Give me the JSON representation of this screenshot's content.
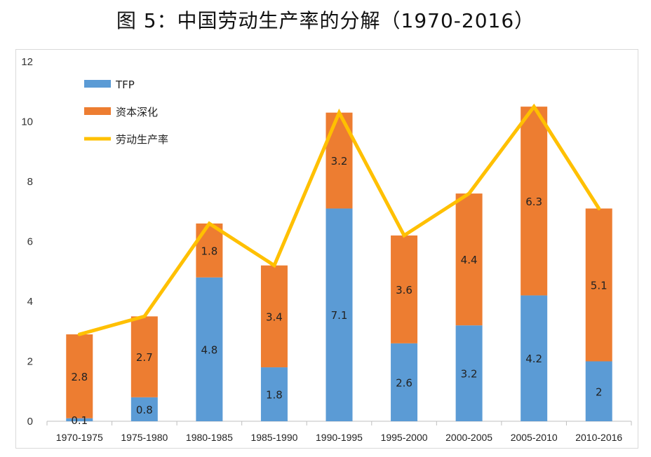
{
  "chart_title": "图 5：中国劳动生产率的分解（1970-2016）",
  "chart_data": {
    "type": "bar",
    "stacked": true,
    "title": "图 5：中国劳动生产率的分解（1970-2016）",
    "categories": [
      "1970-1975",
      "1975-1980",
      "1980-1985",
      "1985-1990",
      "1990-1995",
      "1995-2000",
      "2000-2005",
      "2005-2010",
      "2010-2016"
    ],
    "series": [
      {
        "name": "TFP",
        "type": "bar",
        "color": "#5b9bd5",
        "values": [
          0.1,
          0.8,
          4.8,
          1.8,
          7.1,
          2.6,
          3.2,
          4.2,
          2
        ]
      },
      {
        "name": "资本深化",
        "type": "bar",
        "color": "#ed7d31",
        "values": [
          2.8,
          2.7,
          1.8,
          3.4,
          3.2,
          3.6,
          4.4,
          6.3,
          5.1
        ]
      },
      {
        "name": "劳动生产率",
        "type": "line",
        "color": "#ffc000",
        "values": [
          2.9,
          3.5,
          6.6,
          5.2,
          10.3,
          6.2,
          7.6,
          10.5,
          7.1
        ]
      }
    ],
    "data_labels": {
      "TFP": [
        "0.1",
        "0.8",
        "4.8",
        "1.8",
        "7.1",
        "2.6",
        "3.2",
        "4.2",
        "2"
      ],
      "资本深化": [
        "2.8",
        "2.7",
        "1.8",
        "3.4",
        "3.2",
        "3.6",
        "4.4",
        "6.3",
        "5.1"
      ]
    },
    "ylim": [
      0,
      12
    ],
    "yticks": [
      "0",
      "2",
      "4",
      "6",
      "8",
      "10",
      "12"
    ],
    "xlabel": "",
    "ylabel": "",
    "grid": false,
    "legend_position": "top-left"
  }
}
